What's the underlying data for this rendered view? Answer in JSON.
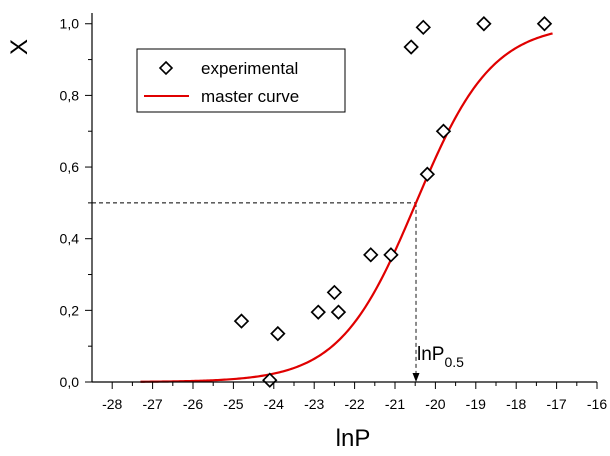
{
  "chart_data": {
    "type": "scatter",
    "xlabel": "lnP",
    "ylabel": "X",
    "xlim": [
      -28.5,
      -16
    ],
    "ylim": [
      0,
      1.03
    ],
    "x_ticks": [
      -28,
      -27,
      -26,
      -25,
      -24,
      -23,
      -22,
      -21,
      -20,
      -19,
      -18,
      -17,
      -16
    ],
    "x_tick_labels": [
      "-28",
      "-27",
      "-26",
      "-25",
      "-24",
      "-23",
      "-22",
      "-21",
      "-20",
      "-19",
      "-18",
      "-17",
      "-16"
    ],
    "y_ticks": [
      0,
      0.2,
      0.4,
      0.6,
      0.8,
      1.0
    ],
    "y_tick_labels": [
      "0,0",
      "0,2",
      "0,4",
      "0,6",
      "0,8",
      "1,0"
    ],
    "grid": false,
    "legend_position": "top-left",
    "series": [
      {
        "name": "experimental",
        "kind": "scatter",
        "marker": "diamond",
        "color": "#000000",
        "points": [
          {
            "x": -24.8,
            "y": 0.17
          },
          {
            "x": -24.1,
            "y": 0.005
          },
          {
            "x": -23.9,
            "y": 0.135
          },
          {
            "x": -22.9,
            "y": 0.195
          },
          {
            "x": -22.5,
            "y": 0.25
          },
          {
            "x": -22.4,
            "y": 0.195
          },
          {
            "x": -21.6,
            "y": 0.355
          },
          {
            "x": -21.1,
            "y": 0.355
          },
          {
            "x": -20.6,
            "y": 0.935
          },
          {
            "x": -20.3,
            "y": 0.99
          },
          {
            "x": -20.2,
            "y": 0.58
          },
          {
            "x": -19.8,
            "y": 0.7
          },
          {
            "x": -18.8,
            "y": 1.0
          },
          {
            "x": -17.3,
            "y": 1.0
          }
        ]
      },
      {
        "name": "master curve",
        "kind": "line",
        "color": "#e00000",
        "x0": -20.48,
        "k": 1.06,
        "x_start": -27.3,
        "x_end": -17.1
      }
    ],
    "annotations": {
      "guide_x": -20.48,
      "guide_y": 0.5,
      "label_main": "lnP",
      "label_sub": "0.5"
    }
  }
}
